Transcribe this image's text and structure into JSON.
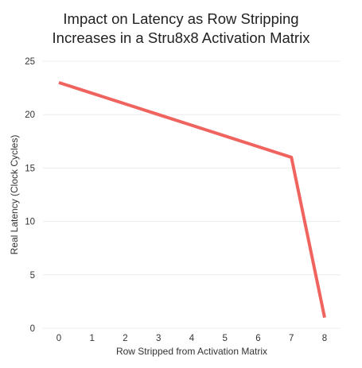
{
  "chart_data": {
    "type": "line",
    "title": "Impact on Latency as Row Stripping\nIncreases in a Stru8x8 Activation Matrix",
    "xlabel": "Row Stripped from Activation Matrix",
    "ylabel": "Real Latency (Clock Cycles)",
    "x": [
      0,
      1,
      2,
      3,
      4,
      5,
      6,
      7,
      8
    ],
    "series": [
      {
        "values": [
          23,
          22,
          21,
          20,
          19,
          18,
          17,
          16,
          1
        ]
      }
    ],
    "xticks": [
      "0",
      "1",
      "2",
      "3",
      "4",
      "5",
      "6",
      "7",
      "8"
    ],
    "yticks": [
      "0",
      "5",
      "10",
      "15",
      "20",
      "25"
    ],
    "xlim": [
      0,
      8
    ],
    "ylim": [
      0,
      25
    ],
    "grid": true,
    "line_color": "#f0645f"
  }
}
